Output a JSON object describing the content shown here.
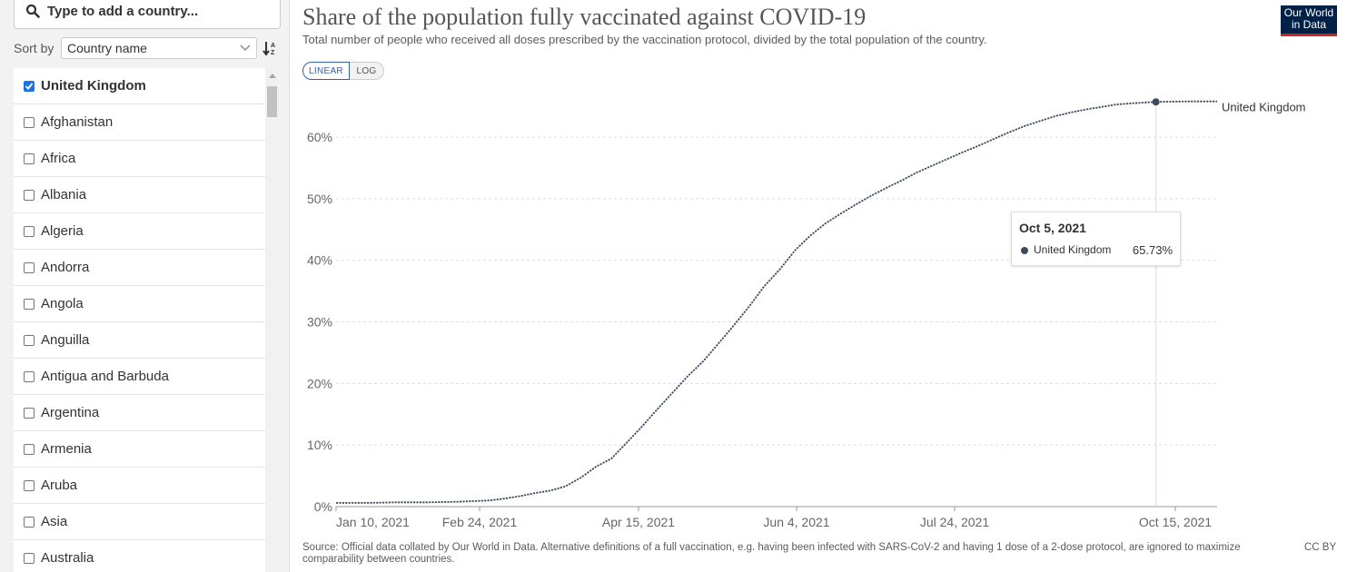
{
  "sidebar": {
    "search_placeholder": "Type to add a country...",
    "sort_label": "Sort by",
    "sort_value": "Country name",
    "countries": [
      {
        "label": "United Kingdom",
        "checked": true
      },
      {
        "label": "Afghanistan",
        "checked": false
      },
      {
        "label": "Africa",
        "checked": false
      },
      {
        "label": "Albania",
        "checked": false
      },
      {
        "label": "Algeria",
        "checked": false
      },
      {
        "label": "Andorra",
        "checked": false
      },
      {
        "label": "Angola",
        "checked": false
      },
      {
        "label": "Anguilla",
        "checked": false
      },
      {
        "label": "Antigua and Barbuda",
        "checked": false
      },
      {
        "label": "Argentina",
        "checked": false
      },
      {
        "label": "Armenia",
        "checked": false
      },
      {
        "label": "Aruba",
        "checked": false
      },
      {
        "label": "Asia",
        "checked": false
      },
      {
        "label": "Australia",
        "checked": false
      }
    ]
  },
  "header": {
    "title": "Share of the population fully vaccinated against COVID-19",
    "subtitle": "Total number of people who received all doses prescribed by the vaccination protocol, divided by the total population of the country.",
    "logo_line1": "Our World",
    "logo_line2": "in Data"
  },
  "controls": {
    "linear_label": "LINEAR",
    "log_label": "LOG",
    "active_scale": "linear"
  },
  "tooltip": {
    "date": "Oct 5, 2021",
    "series": "United Kingdom",
    "value": "65.73%"
  },
  "footer": {
    "source": "Source: Official data collated by Our World in Data. Alternative definitions of a full vaccination, e.g. having been infected with SARS-CoV-2 and having 1 dose of a 2-dose protocol, are ignored to maximize comparability between countries.",
    "license": "CC BY"
  },
  "colors": {
    "series": "#3d4a5c",
    "accent": "#3360a9",
    "logo_bg": "#002147",
    "logo_bar": "#ce261e"
  },
  "chart_data": {
    "type": "line",
    "title": "Share of the population fully vaccinated against COVID-19",
    "subtitle": "Total number of people who received all doses prescribed by the vaccination protocol, divided by the total population of the country.",
    "xlabel": "",
    "ylabel": "",
    "x_ticks": [
      "Jan 10, 2021",
      "Feb 24, 2021",
      "Apr 15, 2021",
      "Jun 4, 2021",
      "Jul 24, 2021",
      "Oct 15, 2021"
    ],
    "y_ticks": [
      "0%",
      "10%",
      "20%",
      "30%",
      "40%",
      "50%",
      "60%"
    ],
    "xlim": [
      "2021-01-10",
      "2021-10-25"
    ],
    "ylim": [
      0,
      66.5
    ],
    "grid": true,
    "legend": "line end label",
    "highlight": {
      "date": "2021-10-05",
      "value": 65.73
    },
    "series": [
      {
        "name": "United Kingdom",
        "points": [
          [
            "2021-01-10",
            0.6
          ],
          [
            "2021-01-20",
            0.6
          ],
          [
            "2021-01-30",
            0.7
          ],
          [
            "2021-02-09",
            0.7
          ],
          [
            "2021-02-19",
            0.8
          ],
          [
            "2021-03-01",
            1.0
          ],
          [
            "2021-03-06",
            1.3
          ],
          [
            "2021-03-11",
            1.7
          ],
          [
            "2021-03-16",
            2.2
          ],
          [
            "2021-03-21",
            2.6
          ],
          [
            "2021-03-26",
            3.3
          ],
          [
            "2021-03-31",
            4.7
          ],
          [
            "2021-04-05",
            6.5
          ],
          [
            "2021-04-10",
            7.8
          ],
          [
            "2021-04-15",
            10.4
          ],
          [
            "2021-04-20",
            13.0
          ],
          [
            "2021-04-25",
            15.8
          ],
          [
            "2021-04-30",
            18.5
          ],
          [
            "2021-05-05",
            21.2
          ],
          [
            "2021-05-10",
            23.6
          ],
          [
            "2021-05-15",
            26.5
          ],
          [
            "2021-05-20",
            29.4
          ],
          [
            "2021-05-25",
            32.5
          ],
          [
            "2021-05-30",
            35.8
          ],
          [
            "2021-06-04",
            38.5
          ],
          [
            "2021-06-09",
            41.6
          ],
          [
            "2021-06-14",
            44.0
          ],
          [
            "2021-06-19",
            46.0
          ],
          [
            "2021-06-24",
            47.6
          ],
          [
            "2021-06-29",
            49.1
          ],
          [
            "2021-07-04",
            50.5
          ],
          [
            "2021-07-09",
            51.8
          ],
          [
            "2021-07-14",
            53.0
          ],
          [
            "2021-07-19",
            54.3
          ],
          [
            "2021-07-24",
            55.4
          ],
          [
            "2021-07-29",
            56.5
          ],
          [
            "2021-08-03",
            57.6
          ],
          [
            "2021-08-08",
            58.6
          ],
          [
            "2021-08-13",
            59.7
          ],
          [
            "2021-08-18",
            60.8
          ],
          [
            "2021-08-23",
            61.8
          ],
          [
            "2021-08-28",
            62.6
          ],
          [
            "2021-09-02",
            63.4
          ],
          [
            "2021-09-07",
            64.0
          ],
          [
            "2021-09-12",
            64.5
          ],
          [
            "2021-09-17",
            64.9
          ],
          [
            "2021-09-22",
            65.3
          ],
          [
            "2021-09-27",
            65.5
          ],
          [
            "2021-10-05",
            65.73
          ],
          [
            "2021-10-15",
            65.8
          ],
          [
            "2021-10-25",
            65.8
          ]
        ]
      }
    ]
  }
}
